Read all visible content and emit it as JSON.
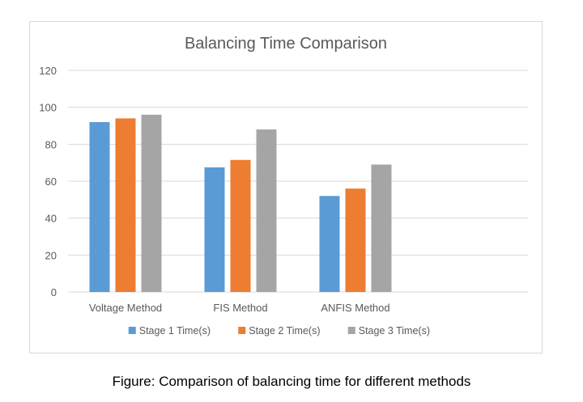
{
  "caption": "Figure: Comparison of balancing time for different methods",
  "chart_data": {
    "type": "bar",
    "title": "Balancing Time Comparison",
    "xlabel": "",
    "ylabel": "",
    "categories": [
      "Voltage Method",
      "FIS Method",
      "ANFIS Method"
    ],
    "series": [
      {
        "name": "Stage 1 Time(s)",
        "color": "#5b9bd5",
        "values": [
          92,
          67.5,
          52
        ]
      },
      {
        "name": "Stage 2 Time(s)",
        "color": "#ed7d31",
        "values": [
          94,
          71.5,
          56
        ]
      },
      {
        "name": "Stage 3 Time(s)",
        "color": "#a5a5a5",
        "values": [
          96,
          88,
          69
        ]
      }
    ],
    "ylim": [
      0,
      120
    ],
    "yticks": [
      0,
      20,
      40,
      60,
      80,
      100,
      120
    ],
    "grid": true,
    "legend_position": "bottom"
  }
}
